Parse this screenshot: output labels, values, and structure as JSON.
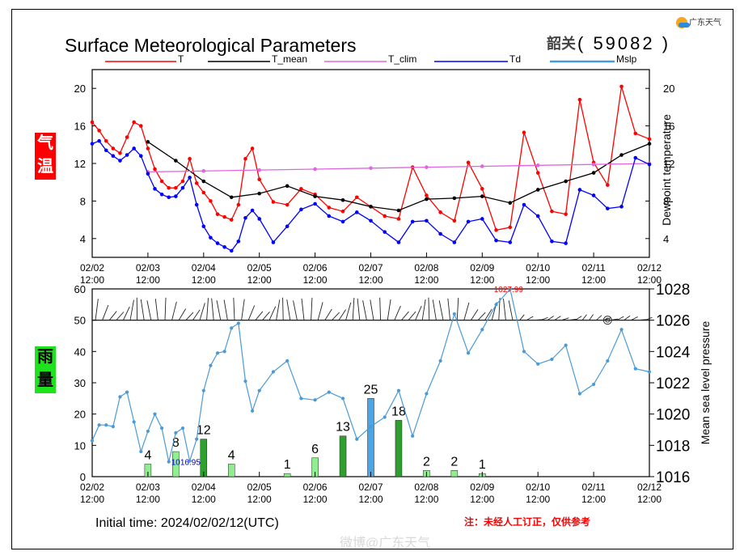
{
  "header": {
    "title": "Surface Meteorological Parameters",
    "station": "韶关",
    "station_code": "( 59082 )",
    "logo_text": "广东天气",
    "watermark": "微博@广东天气"
  },
  "legend": [
    {
      "name": "T",
      "color": "#ff0000"
    },
    {
      "name": "T_mean",
      "color": "#000000"
    },
    {
      "name": "T_clim",
      "color": "#e066e0"
    },
    {
      "name": "Td",
      "color": "#0000ff"
    },
    {
      "name": "Mslp",
      "color": "#4a9ad8"
    }
  ],
  "side_labels": {
    "temp": [
      "气",
      "温"
    ],
    "rain": [
      "雨",
      "量"
    ]
  },
  "footer": {
    "initial_time": "Initial time: 2024/02/02/12(UTC)",
    "note": "注：未经人工订正，仅供参考"
  },
  "x_ticks": [
    {
      "date": "02/02",
      "time": "12:00"
    },
    {
      "date": "02/03",
      "time": "12:00"
    },
    {
      "date": "02/04",
      "time": "12:00"
    },
    {
      "date": "02/05",
      "time": "12:00"
    },
    {
      "date": "02/06",
      "time": "12:00"
    },
    {
      "date": "02/07",
      "time": "12:00"
    },
    {
      "date": "02/08",
      "time": "12:00"
    },
    {
      "date": "02/09",
      "time": "12:00"
    },
    {
      "date": "02/10",
      "time": "12:00"
    },
    {
      "date": "02/11",
      "time": "12:00"
    },
    {
      "date": "02/12",
      "time": "12:00"
    }
  ],
  "chart_data": [
    {
      "type": "line",
      "title": "Surface Meteorological Parameters",
      "x_unit": "days since 2024/02/02 12:00",
      "ylabel_right": "Dewpoint temperature",
      "ylim": [
        2,
        22
      ],
      "yticks": [
        4,
        8,
        12,
        16,
        20
      ],
      "grid": false,
      "series": [
        {
          "name": "T",
          "color": "#ff0000",
          "x": [
            0,
            0.125,
            0.25,
            0.375,
            0.5,
            0.625,
            0.75,
            0.875,
            1,
            1.125,
            1.25,
            1.375,
            1.5,
            1.625,
            1.75,
            1.875,
            2,
            2.125,
            2.25,
            2.375,
            2.5,
            2.625,
            2.75,
            2.875,
            3,
            3.25,
            3.5,
            3.75,
            4,
            4.25,
            4.5,
            4.75,
            5,
            5.25,
            5.5,
            5.75,
            6,
            6.25,
            6.5,
            6.75,
            7,
            7.25,
            7.5,
            7.75,
            8,
            8.25,
            8.5,
            8.75,
            9,
            9.25,
            9.5,
            9.75,
            10
          ],
          "y": [
            16.4,
            15.5,
            14.4,
            13.6,
            13.1,
            14.8,
            16.4,
            16.0,
            13.6,
            11.4,
            10.1,
            9.4,
            9.4,
            10.1,
            12.5,
            9.9,
            8.9,
            8.0,
            6.6,
            6.3,
            6.0,
            7.6,
            12.5,
            13.6,
            10.3,
            7.9,
            7.6,
            9.3,
            8.7,
            7.3,
            6.9,
            8.4,
            7.4,
            6.4,
            6.1,
            11.6,
            8.6,
            6.8,
            5.9,
            12.1,
            9.3,
            4.9,
            5.2,
            15.3,
            11.0,
            6.9,
            6.6,
            18.8,
            12.1,
            9.7,
            20.2,
            15.2,
            14.6
          ]
        },
        {
          "name": "T_mean",
          "color": "#000000",
          "x": [
            1,
            1.5,
            2,
            2.5,
            3,
            3.5,
            4,
            4.5,
            5,
            5.5,
            6,
            6.5,
            7,
            7.5,
            8,
            8.5,
            9,
            9.5,
            10
          ],
          "y": [
            14.3,
            12.3,
            10.1,
            8.4,
            8.8,
            9.6,
            8.5,
            8.1,
            7.4,
            7.0,
            8.2,
            8.3,
            8.5,
            7.8,
            9.2,
            10.1,
            11.0,
            12.9,
            14.1
          ]
        },
        {
          "name": "T_clim",
          "color": "#e066e0",
          "x": [
            1,
            2,
            3,
            4,
            5,
            6,
            7,
            8,
            9,
            10
          ],
          "y": [
            11.1,
            11.2,
            11.3,
            11.4,
            11.5,
            11.6,
            11.7,
            11.8,
            11.9,
            12.0
          ]
        },
        {
          "name": "Td",
          "color": "#0000ff",
          "x": [
            0,
            0.125,
            0.25,
            0.375,
            0.5,
            0.625,
            0.75,
            0.875,
            1,
            1.125,
            1.25,
            1.375,
            1.5,
            1.625,
            1.75,
            1.875,
            2,
            2.125,
            2.25,
            2.375,
            2.5,
            2.625,
            2.75,
            2.875,
            3,
            3.25,
            3.5,
            3.75,
            4,
            4.25,
            4.5,
            4.75,
            5,
            5.25,
            5.5,
            5.75,
            6,
            6.25,
            6.5,
            6.75,
            7,
            7.25,
            7.5,
            7.75,
            8,
            8.25,
            8.5,
            8.75,
            9,
            9.25,
            9.5,
            9.75,
            10
          ],
          "y": [
            14.1,
            14.4,
            13.4,
            12.8,
            12.3,
            12.9,
            13.6,
            12.8,
            10.9,
            9.3,
            8.7,
            8.4,
            8.5,
            9.4,
            10.5,
            7.6,
            5.3,
            4.1,
            3.5,
            3.1,
            2.7,
            3.7,
            6.2,
            7.0,
            6.1,
            3.6,
            5.3,
            7.1,
            7.7,
            6.4,
            5.8,
            6.8,
            5.9,
            4.7,
            3.6,
            5.8,
            5.9,
            4.5,
            3.6,
            5.8,
            6.1,
            3.8,
            3.6,
            7.6,
            6.4,
            3.7,
            3.5,
            9.2,
            8.6,
            7.2,
            7.4,
            12.6,
            11.9
          ]
        }
      ]
    },
    {
      "type": "bar",
      "x_unit": "days since 2024/02/02 12:00",
      "ylabel_right": "Mean sea level pressure",
      "ylim_left": [
        0,
        60
      ],
      "yticks_left": [
        0,
        10,
        20,
        30,
        40,
        50,
        60
      ],
      "ylim_right": [
        1016,
        1028
      ],
      "yticks_right": [
        1016,
        1018,
        1020,
        1022,
        1024,
        1026,
        1028
      ],
      "grid": false,
      "rain": {
        "x": [
          1,
          1.5,
          2,
          2.5,
          3.5,
          4,
          4.5,
          5,
          5.5,
          6,
          6.5,
          7
        ],
        "values": [
          4,
          8,
          12,
          4,
          1,
          6,
          13,
          25,
          18,
          2,
          2,
          1
        ],
        "colors": [
          "#90ee90",
          "#90ee90",
          "#2ea02e",
          "#90ee90",
          "#90ee90",
          "#90ee90",
          "#2ea02e",
          "#4aa6e8",
          "#2ea02e",
          "#90ee90",
          "#90ee90",
          "#90ee90"
        ]
      },
      "series": [
        {
          "name": "Mslp",
          "color": "#4a9ad8",
          "x": [
            0,
            0.125,
            0.25,
            0.375,
            0.5,
            0.625,
            0.75,
            0.875,
            1,
            1.125,
            1.25,
            1.375,
            1.5,
            1.625,
            1.75,
            1.875,
            2,
            2.125,
            2.25,
            2.375,
            2.5,
            2.625,
            2.75,
            2.875,
            3,
            3.25,
            3.5,
            3.75,
            4,
            4.25,
            4.5,
            4.75,
            5,
            5.25,
            5.5,
            5.75,
            6,
            6.25,
            6.5,
            6.75,
            7,
            7.25,
            7.5,
            7.75,
            8,
            8.25,
            8.5,
            8.75,
            9,
            9.25,
            9.5,
            9.75,
            10
          ],
          "y": [
            1018.3,
            1019.3,
            1019.3,
            1019.2,
            1021.1,
            1021.4,
            1019.5,
            1017.6,
            1018.9,
            1020.0,
            1019.1,
            1016.95,
            1018.8,
            1019.1,
            1017.0,
            1018.4,
            1021.5,
            1023.1,
            1023.9,
            1024.0,
            1025.5,
            1025.8,
            1022.1,
            1020.2,
            1021.5,
            1022.7,
            1023.4,
            1021.0,
            1020.9,
            1021.4,
            1021.0,
            1018.4,
            1019.2,
            1019.8,
            1021.5,
            1018.6,
            1021.3,
            1023.4,
            1026.4,
            1023.9,
            1025.4,
            1027.0,
            1027.99,
            1024.0,
            1023.2,
            1023.5,
            1024.4,
            1021.3,
            1021.9,
            1023.4,
            1025.4,
            1022.9,
            1022.7
          ]
        }
      ],
      "annotations": [
        {
          "text": "1016.95",
          "color": "#0000cc"
        },
        {
          "text": "1027.99",
          "color": "#ff0000"
        }
      ]
    }
  ]
}
